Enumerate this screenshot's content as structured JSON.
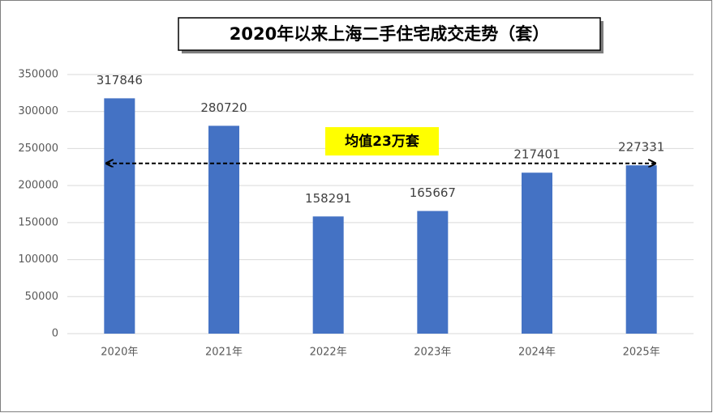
{
  "chart_data": {
    "type": "bar",
    "title": "2020年以来上海二手住宅成交走势（套）",
    "categories": [
      "2020年",
      "2021年",
      "2022年",
      "2023年",
      "2024年",
      "2025年"
    ],
    "values": [
      317846,
      280720,
      158291,
      165667,
      217401,
      227331
    ],
    "color": "#4472c4",
    "ylim": [
      0,
      350000
    ],
    "yticks": [
      0,
      50000,
      100000,
      150000,
      200000,
      250000,
      300000,
      350000
    ],
    "grid": true,
    "annotation": {
      "label": "均值23万套",
      "value": 230000
    }
  }
}
